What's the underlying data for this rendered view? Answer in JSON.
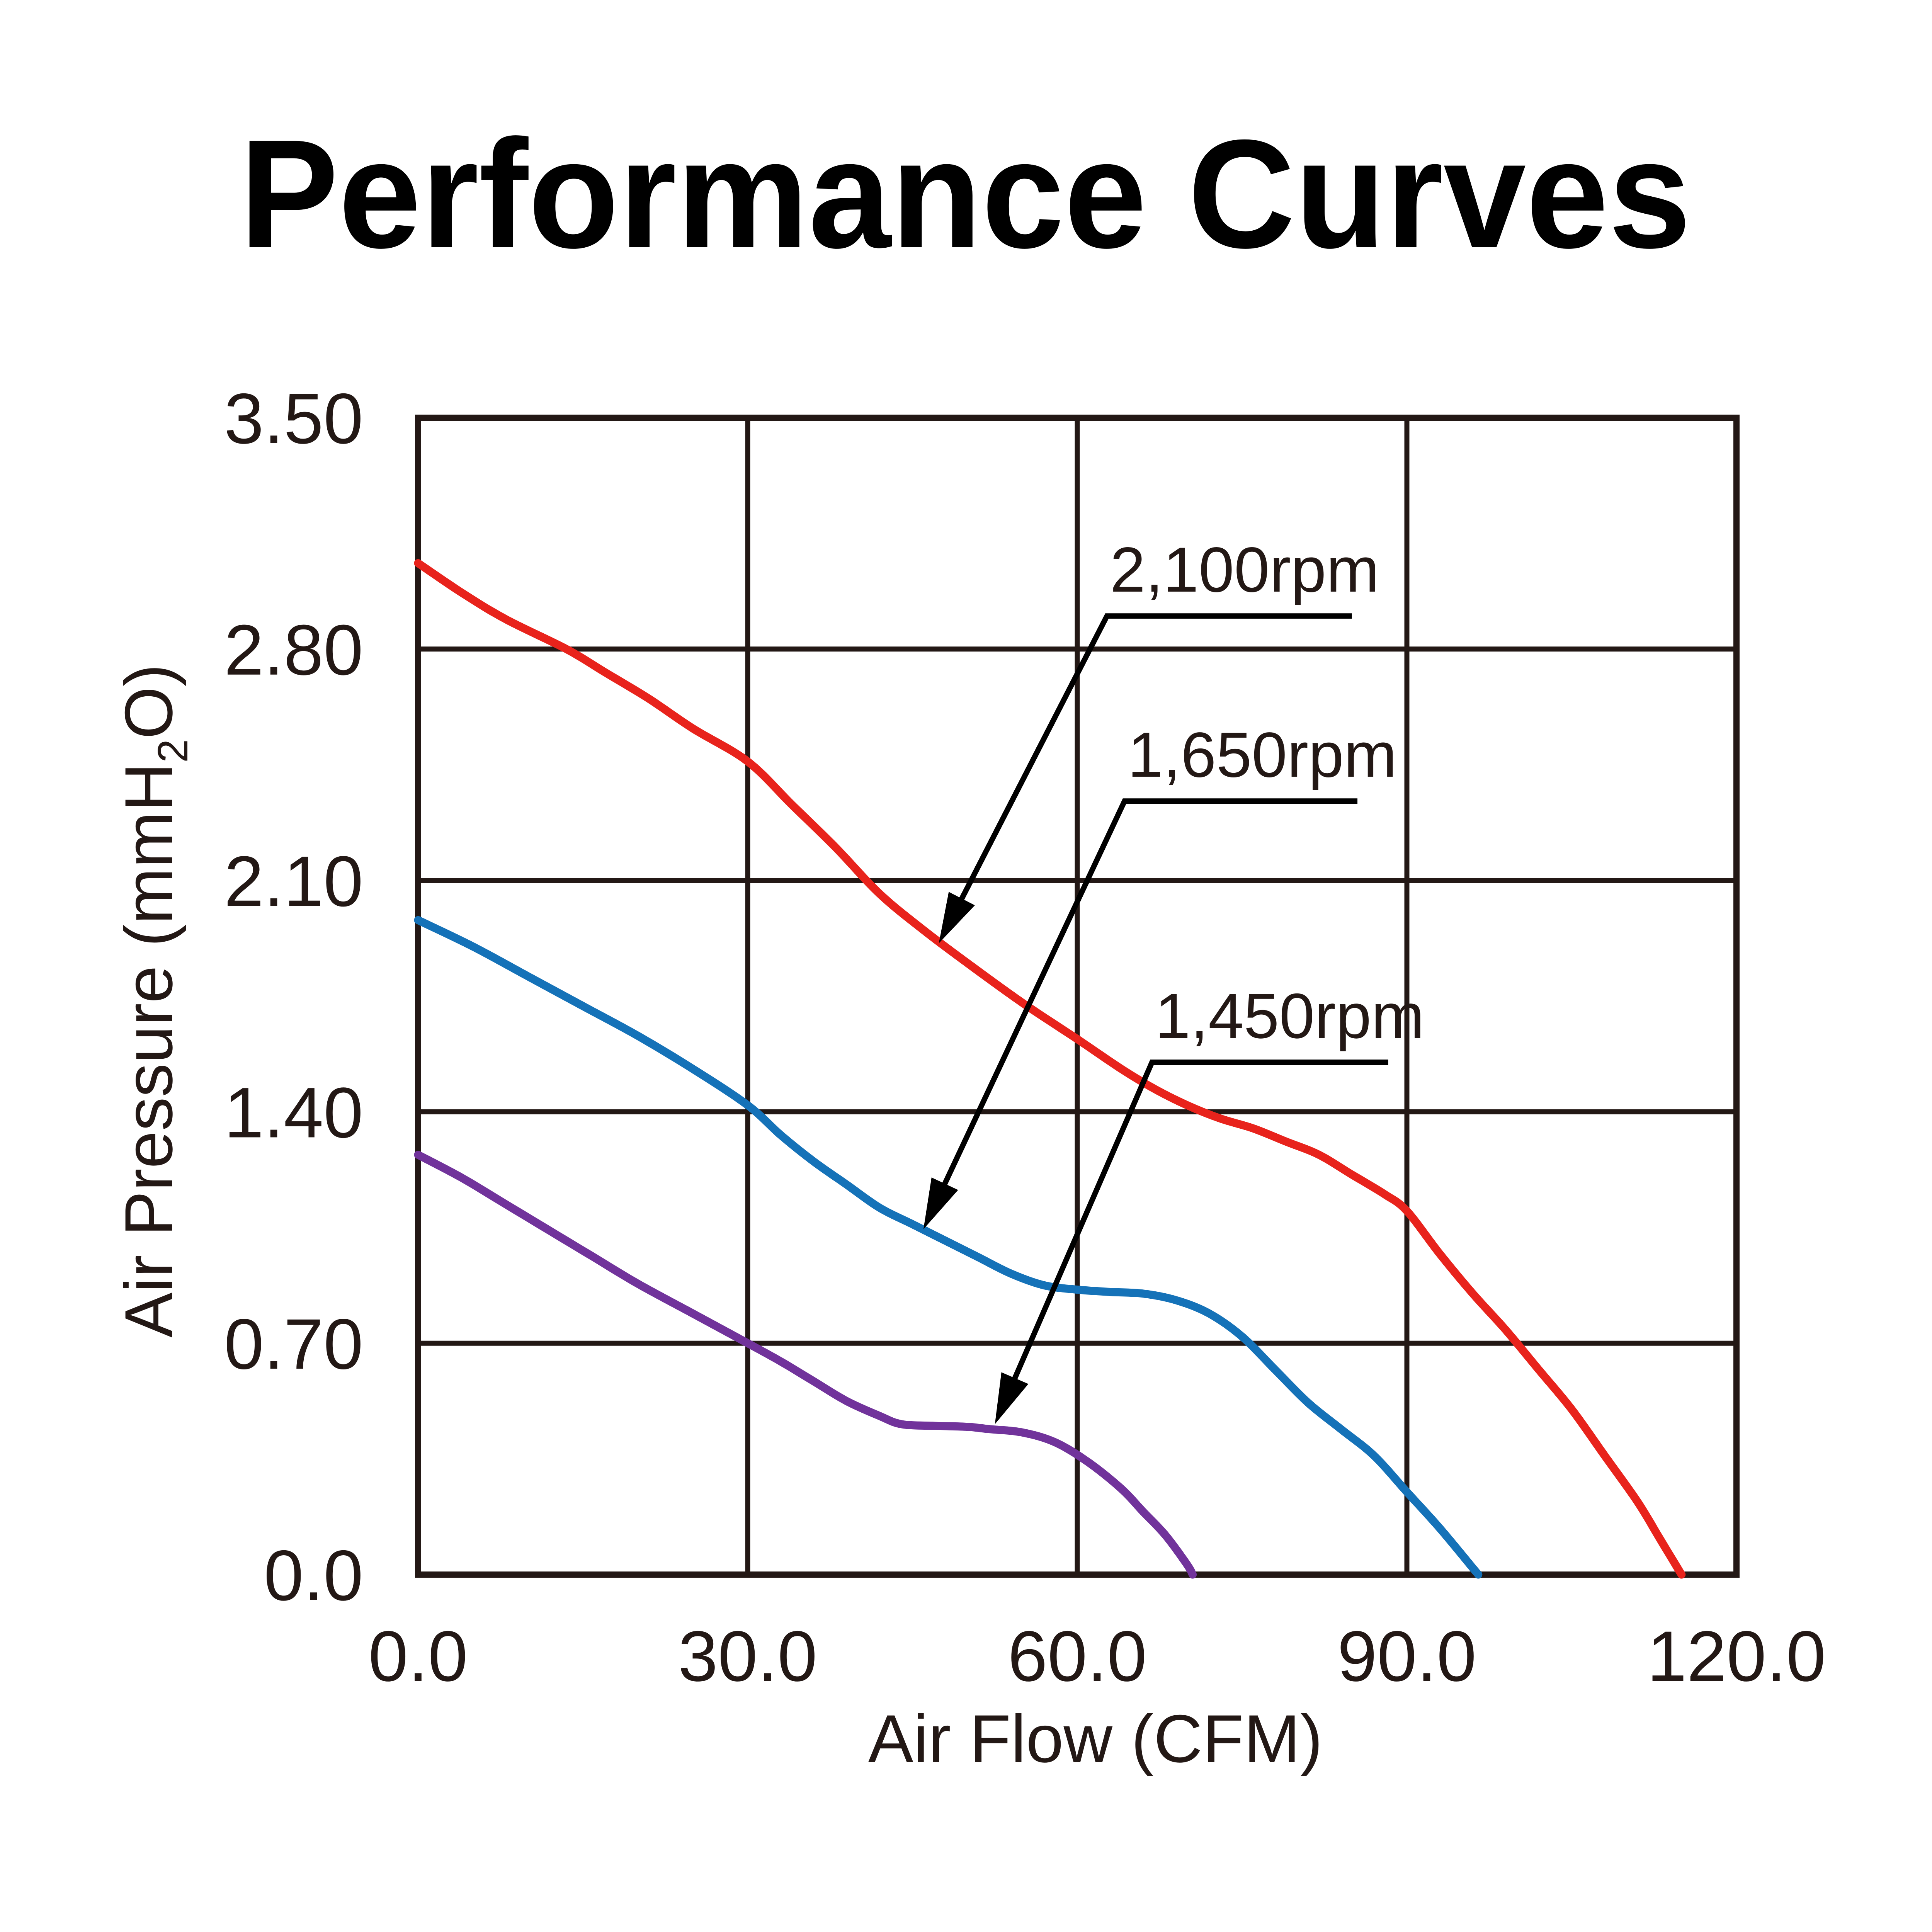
{
  "title": "Performance Curves",
  "chart_data": {
    "type": "line",
    "title": "Performance Curves",
    "xlabel": "Air Flow (CFM)",
    "ylabel": "Air Pressure (mmH2O)",
    "ylabel_parts": {
      "prefix": "Air Pressure (mmH",
      "sub": "2",
      "suffix": "O)"
    },
    "xlim": [
      0,
      120
    ],
    "ylim": [
      0,
      3.5
    ],
    "grid": true,
    "legend_position": "none",
    "axis_color": "#231815",
    "xticks": {
      "values": [
        0,
        30,
        60,
        90,
        120
      ],
      "labels": [
        "0.0",
        "30.0",
        "60.0",
        "90.0",
        "120.0"
      ]
    },
    "yticks": {
      "values": [
        3.5,
        2.8,
        2.1,
        1.4,
        0.7,
        0
      ],
      "labels": [
        "3.50",
        "2.80",
        "2.10",
        "1.40",
        "0.70",
        "0.0"
      ]
    },
    "series": [
      {
        "name": "2,100rpm",
        "color": "#e8231c",
        "points": [
          [
            0,
            3.06
          ],
          [
            4,
            2.97
          ],
          [
            8,
            2.89
          ],
          [
            13.5,
            2.8
          ],
          [
            17,
            2.73
          ],
          [
            21,
            2.65
          ],
          [
            25,
            2.56
          ],
          [
            30,
            2.46
          ],
          [
            34,
            2.33
          ],
          [
            38,
            2.2
          ],
          [
            42,
            2.06
          ],
          [
            46,
            1.95
          ],
          [
            50,
            1.85
          ],
          [
            55,
            1.73
          ],
          [
            60,
            1.62
          ],
          [
            64,
            1.53
          ],
          [
            67,
            1.47
          ],
          [
            70,
            1.42
          ],
          [
            73,
            1.38
          ],
          [
            76,
            1.35
          ],
          [
            79,
            1.31
          ],
          [
            82,
            1.27
          ],
          [
            85,
            1.21
          ],
          [
            88,
            1.15
          ],
          [
            90,
            1.1
          ],
          [
            93,
            0.97
          ],
          [
            96,
            0.85
          ],
          [
            99,
            0.74
          ],
          [
            102,
            0.62
          ],
          [
            105,
            0.5
          ],
          [
            108,
            0.36
          ],
          [
            111,
            0.22
          ],
          [
            113,
            0.11
          ],
          [
            115,
            0
          ]
        ]
      },
      {
        "name": "1,650rpm",
        "color": "#1572b8",
        "points": [
          [
            0,
            1.98
          ],
          [
            5,
            1.9
          ],
          [
            10,
            1.81
          ],
          [
            15,
            1.72
          ],
          [
            20,
            1.63
          ],
          [
            25,
            1.53
          ],
          [
            30,
            1.42
          ],
          [
            33,
            1.33
          ],
          [
            36,
            1.25
          ],
          [
            39,
            1.18
          ],
          [
            42,
            1.11
          ],
          [
            45,
            1.06
          ],
          [
            48,
            1.01
          ],
          [
            51,
            0.96
          ],
          [
            54,
            0.91
          ],
          [
            57,
            0.875
          ],
          [
            60,
            0.862
          ],
          [
            63,
            0.855
          ],
          [
            66,
            0.85
          ],
          [
            69,
            0.83
          ],
          [
            72,
            0.79
          ],
          [
            75,
            0.72
          ],
          [
            78,
            0.62
          ],
          [
            81,
            0.52
          ],
          [
            84,
            0.44
          ],
          [
            87,
            0.36
          ],
          [
            90,
            0.25
          ],
          [
            93,
            0.14
          ],
          [
            96,
            0.02
          ],
          [
            96.5,
            0
          ]
        ]
      },
      {
        "name": "1,450rpm",
        "color": "#71339b",
        "points": [
          [
            0,
            1.27
          ],
          [
            4,
            1.2
          ],
          [
            8,
            1.12
          ],
          [
            12,
            1.04
          ],
          [
            16,
            0.96
          ],
          [
            20,
            0.88
          ],
          [
            25,
            0.79
          ],
          [
            30,
            0.7
          ],
          [
            33,
            0.645
          ],
          [
            36,
            0.585
          ],
          [
            39,
            0.525
          ],
          [
            42,
            0.48
          ],
          [
            44,
            0.455
          ],
          [
            47,
            0.45
          ],
          [
            50,
            0.447
          ],
          [
            52,
            0.44
          ],
          [
            55,
            0.43
          ],
          [
            58,
            0.4
          ],
          [
            61,
            0.34
          ],
          [
            64,
            0.26
          ],
          [
            66,
            0.19
          ],
          [
            68,
            0.12
          ],
          [
            70,
            0.03
          ],
          [
            70.5,
            0
          ]
        ]
      }
    ],
    "annotations": [
      {
        "label": "2,100rpm",
        "underline_y": 2.9,
        "x1": 62.7,
        "x2": 85.0,
        "tip": [
          47.4,
          1.91
        ]
      },
      {
        "label": "1,650rpm",
        "underline_y": 2.34,
        "x1": 64.3,
        "x2": 85.5,
        "tip": [
          46.0,
          1.045
        ]
      },
      {
        "label": "1,450rpm",
        "underline_y": 1.55,
        "x1": 66.8,
        "x2": 88.3,
        "tip": [
          52.5,
          0.455
        ]
      }
    ]
  }
}
